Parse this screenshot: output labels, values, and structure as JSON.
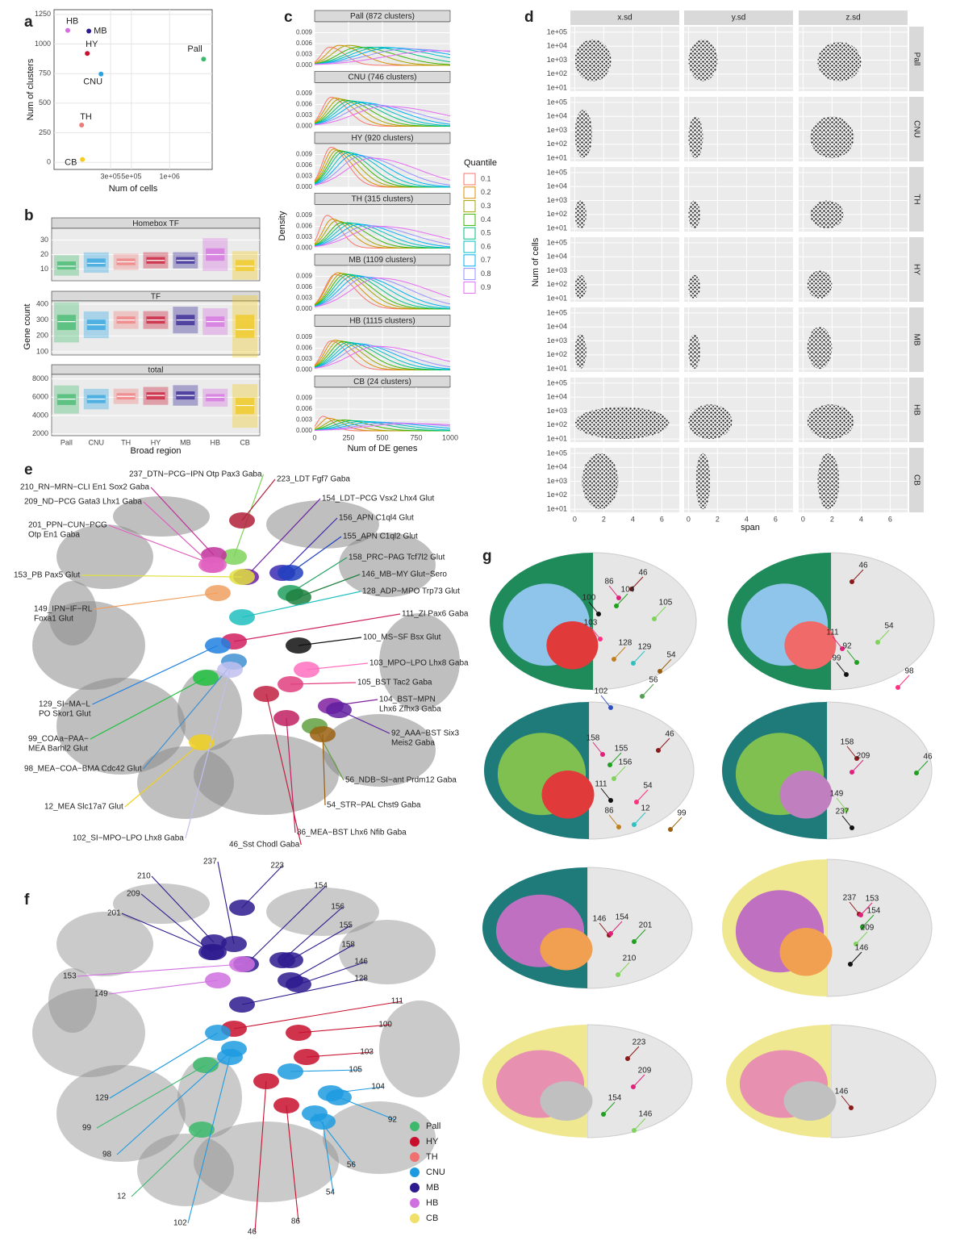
{
  "panel_labels": [
    "a",
    "b",
    "c",
    "d",
    "e",
    "f",
    "g"
  ],
  "chart_data": [
    {
      "type": "scatter",
      "xlabel": "Num of cells",
      "ylabel": "Num of clusters",
      "xscale": "sqrt",
      "xlim": [
        13000,
        1760000
      ],
      "ylim": [
        -60,
        1290
      ],
      "xticks": [
        {
          "value": 300000,
          "label": "3e+05"
        },
        {
          "value": 500000,
          "label": "5e+05"
        },
        {
          "value": 1000000,
          "label": "1e+06"
        }
      ],
      "yticks": [
        0,
        250,
        500,
        750,
        1000,
        1250
      ],
      "grid": true,
      "categories": [
        "HB",
        "MB",
        "HY",
        "Pall",
        "CNU",
        "TH",
        "CB"
      ],
      "x": [
        48000,
        145000,
        136000,
        1590000,
        225000,
        106000,
        110000
      ],
      "values": [
        1115,
        1109,
        920,
        872,
        746,
        315,
        24
      ],
      "colors": [
        "#d56ee0",
        "#2b1d8e",
        "#c8102e",
        "#3cb96b",
        "#2ba3e0",
        "#f07a7a",
        "#f5cc20"
      ]
    },
    {
      "type": "box",
      "xlabel": "Broad region",
      "ylabel": "Gene count",
      "categories": [
        "Pall",
        "CNU",
        "TH",
        "HY",
        "MB",
        "HB",
        "CB"
      ],
      "colors": [
        "#3cb96b",
        "#2ba3e0",
        "#f07a7a",
        "#c8102e",
        "#2b1d8e",
        "#d56ee0",
        "#f0c818"
      ],
      "facets": [
        {
          "title": "Homebox TF",
          "ylim": [
            2,
            38
          ],
          "yticks": [
            10,
            20,
            30
          ],
          "q1": [
            10,
            12,
            13,
            14,
            14,
            16,
            9
          ],
          "median": [
            12,
            14,
            15,
            16,
            16,
            20,
            12
          ],
          "q3": [
            15,
            17,
            17,
            18,
            18,
            24,
            16
          ]
        },
        {
          "title": "TF",
          "ylim": [
            80,
            420
          ],
          "yticks": [
            100,
            200,
            300,
            400
          ],
          "q1": [
            240,
            240,
            280,
            280,
            270,
            260,
            190
          ],
          "median": [
            290,
            270,
            300,
            300,
            300,
            290,
            240
          ],
          "q3": [
            330,
            300,
            320,
            320,
            330,
            320,
            330
          ]
        },
        {
          "title": "total",
          "ylim": [
            1800,
            8500
          ],
          "yticks": [
            2000,
            4000,
            6000,
            8000
          ],
          "q1": [
            5200,
            5400,
            5800,
            5800,
            5800,
            5600,
            4200
          ],
          "median": [
            5800,
            5800,
            6100,
            6200,
            6200,
            6000,
            5100
          ],
          "q3": [
            6300,
            6200,
            6400,
            6500,
            6600,
            6300,
            5900
          ]
        }
      ]
    },
    {
      "type": "density",
      "xlabel": "Num of DE genes",
      "ylabel": "Density",
      "xlim": [
        0,
        1000
      ],
      "xticks": [
        0,
        250,
        500,
        750,
        1000
      ],
      "ylim": [
        0,
        0.012
      ],
      "yticks": [
        {
          "value": 0,
          "label": "0.000"
        },
        {
          "value": 0.003,
          "label": "0.003"
        },
        {
          "value": 0.006,
          "label": "0.006"
        },
        {
          "value": 0.009,
          "label": "0.009"
        }
      ],
      "legend_title": "Quantile",
      "series_names": [
        "0.1",
        "0.2",
        "0.3",
        "0.4",
        "0.5",
        "0.6",
        "0.7",
        "0.8",
        "0.9"
      ],
      "colors": [
        "#f8766d",
        "#d89000",
        "#a3a500",
        "#39b600",
        "#00bf7d",
        "#00bfc4",
        "#00b0f6",
        "#9590ff",
        "#e76bf3"
      ],
      "facets": [
        {
          "title": "Pall (872 clusters)",
          "peak_x": [
            110,
            180,
            250,
            320,
            400,
            480,
            560,
            680,
            900
          ],
          "peak_y": [
            0.005,
            0.0055,
            0.0055,
            0.005,
            0.005,
            0.005,
            0.0048,
            0.0045,
            0.004
          ]
        },
        {
          "title": "CNU (746 clusters)",
          "peak_x": [
            120,
            150,
            185,
            220,
            260,
            300,
            350,
            410,
            520
          ],
          "peak_y": [
            0.008,
            0.0078,
            0.0075,
            0.0072,
            0.007,
            0.0068,
            0.0065,
            0.006,
            0.0055
          ]
        },
        {
          "title": "HY (920 clusters)",
          "peak_x": [
            120,
            140,
            165,
            190,
            215,
            250,
            290,
            340,
            420
          ],
          "peak_y": [
            0.011,
            0.0105,
            0.0102,
            0.01,
            0.0098,
            0.0095,
            0.009,
            0.0085,
            0.008
          ]
        },
        {
          "title": "TH (315 clusters)",
          "peak_x": [
            90,
            130,
            160,
            200,
            240,
            280,
            330,
            390,
            480
          ],
          "peak_y": [
            0.009,
            0.008,
            0.0075,
            0.007,
            0.007,
            0.0068,
            0.0065,
            0.0062,
            0.006
          ]
        },
        {
          "title": "MB (1109 clusters)",
          "peak_x": [
            150,
            170,
            200,
            225,
            255,
            290,
            330,
            385,
            470
          ],
          "peak_y": [
            0.0095,
            0.01,
            0.0098,
            0.0096,
            0.0095,
            0.0093,
            0.009,
            0.0088,
            0.0085
          ]
        },
        {
          "title": "HB (1115 clusters)",
          "peak_x": [
            120,
            150,
            180,
            210,
            245,
            280,
            320,
            370,
            460
          ],
          "peak_y": [
            0.008,
            0.0082,
            0.008,
            0.0078,
            0.0076,
            0.0074,
            0.0072,
            0.0068,
            0.0065
          ]
        },
        {
          "title": "CB (24 clusters)",
          "peak_x": [
            60,
            100,
            150,
            210,
            280,
            350,
            440,
            550,
            680
          ],
          "peak_y": [
            0.004,
            0.0035,
            0.003,
            0.003,
            0.0028,
            0.0026,
            0.0024,
            0.0022,
            0.002
          ]
        }
      ]
    },
    {
      "type": "scatter-facet",
      "xlabel": "span",
      "ylabel": "Num of cells",
      "ylog": true,
      "xlim": [
        -0.3,
        7.2
      ],
      "xticks": [
        0,
        2,
        4,
        6
      ],
      "ylim": [
        6,
        250000
      ],
      "yticks": [
        {
          "value": 10,
          "label": "1e+01"
        },
        {
          "value": 100,
          "label": "1e+02"
        },
        {
          "value": 1000,
          "label": "1e+03"
        },
        {
          "value": 10000,
          "label": "1e+04"
        },
        {
          "value": 100000,
          "label": "1e+05"
        }
      ],
      "columns": [
        "x.sd",
        "y.sd",
        "z.sd"
      ],
      "rows": [
        "Pall",
        "CNU",
        "TH",
        "HY",
        "MB",
        "HB",
        "CB"
      ],
      "cells": [
        [
          {
            "x": [
              0,
              2.5
            ],
            "y": [
              30,
              30000
            ]
          },
          {
            "x": [
              0,
              2
            ],
            "y": [
              30,
              30000
            ]
          },
          {
            "x": [
              1,
              4
            ],
            "y": [
              30,
              20000
            ]
          }
        ],
        [
          {
            "x": [
              0,
              1.2
            ],
            "y": [
              10,
              30000
            ]
          },
          {
            "x": [
              0,
              1
            ],
            "y": [
              10,
              10000
            ]
          },
          {
            "x": [
              0.5,
              3.5
            ],
            "y": [
              10,
              10000
            ]
          }
        ],
        [
          {
            "x": [
              0,
              0.8
            ],
            "y": [
              10,
              1000
            ]
          },
          {
            "x": [
              0,
              0.8
            ],
            "y": [
              10,
              1000
            ]
          },
          {
            "x": [
              0.5,
              2.8
            ],
            "y": [
              10,
              1000
            ]
          }
        ],
        [
          {
            "x": [
              0,
              0.8
            ],
            "y": [
              10,
              500
            ]
          },
          {
            "x": [
              0,
              0.8
            ],
            "y": [
              10,
              500
            ]
          },
          {
            "x": [
              0.3,
              2
            ],
            "y": [
              10,
              1000
            ]
          }
        ],
        [
          {
            "x": [
              0,
              0.8
            ],
            "y": [
              10,
              3000
            ]
          },
          {
            "x": [
              0,
              0.8
            ],
            "y": [
              10,
              3000
            ]
          },
          {
            "x": [
              0.3,
              2
            ],
            "y": [
              10,
              10000
            ]
          }
        ],
        [
          {
            "x": [
              0,
              6.5
            ],
            "y": [
              10,
              2000
            ]
          },
          {
            "x": [
              0,
              3
            ],
            "y": [
              10,
              3000
            ]
          },
          {
            "x": [
              0.3,
              3.5
            ],
            "y": [
              10,
              3000
            ]
          }
        ],
        [
          {
            "x": [
              0.5,
              3
            ],
            "y": [
              10,
              100000
            ]
          },
          {
            "x": [
              0.5,
              1.5
            ],
            "y": [
              10,
              100000
            ]
          },
          {
            "x": [
              1,
              2.5
            ],
            "y": [
              10,
              100000
            ]
          }
        ]
      ]
    }
  ],
  "panel_e": {
    "labels": [
      [
        "237_DTN−PCG−IPN Otp Pax3 Gaba"
      ],
      [
        "223_LDT Fgf7 Gaba"
      ],
      [
        "210_RN−MRN−CLI En1 Sox2 Gaba"
      ],
      [
        "154_LDT−PCG Vsx2 Lhx4 Glut"
      ],
      [
        "209_ND−PCG Gata3 Lhx1 Gaba"
      ],
      [
        "156_APN C1ql4 Glut"
      ],
      [
        "201_PPN−CUN−PCG",
        "Otp En1 Gaba"
      ],
      [
        "155_APN C1ql2 Glut"
      ],
      [
        "158_PRC−PAG Tcf7l2 Glut"
      ],
      [
        "153_PB Pax5 Glut"
      ],
      [
        "146_MB−MY Glut−Sero"
      ],
      [
        "128_ADP−MPO Trp73 Glut"
      ],
      [
        "149_IPN−IF−RL",
        "Foxa1 Glut"
      ],
      [
        "111_ZI Pax6 Gaba"
      ],
      [
        "100_MS−SF Bsx Glut"
      ],
      [
        "103_MPO−LPO Lhx8 Gaba"
      ],
      [
        "105_BST Tac2 Gaba"
      ],
      [
        "104_BST−MPN",
        "Lhx6 Zfhx3 Gaba"
      ],
      [
        "129_SI−MA−L",
        "PO Skor1 Glut"
      ],
      [
        "92_AAA−BST Six3",
        "Meis2 Gaba"
      ],
      [
        "99_COAa−PAA−",
        "MEA Barhl2 Glut"
      ],
      [
        "98_MEA−COA−BMA Cdc42 Glut"
      ],
      [
        "56_NDB−SI−ant Prdm12 Gaba"
      ],
      [
        "12_MEA Slc17a7 Glut"
      ],
      [
        "54_STR−PAL Chst9 Gaba"
      ],
      [
        "102_SI−MPO−LPO Lhx8 Gaba"
      ],
      [
        "86_MEA−BST Lhx6 Nfib Gaba"
      ],
      [
        "46_Sst Chodl Gaba"
      ]
    ]
  },
  "panel_f": {
    "labels": [
      "237",
      "223",
      "210",
      "154",
      "209",
      "156",
      "201",
      "155",
      "158",
      "153",
      "146",
      "128",
      "149",
      "111",
      "100",
      "103",
      "105",
      "104",
      "129",
      "92",
      "99",
      "98",
      "56",
      "12",
      "54",
      "102",
      "86",
      "46"
    ],
    "legend": [
      {
        "name": "Pall",
        "color": "#3cb96b"
      },
      {
        "name": "HY",
        "color": "#c8102e"
      },
      {
        "name": "TH",
        "color": "#f07070"
      },
      {
        "name": "CNU",
        "color": "#1e9be0"
      },
      {
        "name": "MB",
        "color": "#2e1a8e"
      },
      {
        "name": "HB",
        "color": "#d070e0"
      },
      {
        "name": "CB",
        "color": "#f0e06a"
      }
    ]
  },
  "panel_g": {
    "sections": [
      [
        "46",
        "86",
        "104",
        "105",
        "100",
        "103",
        "128",
        "129",
        "54",
        "102",
        "56"
      ],
      [
        "46",
        "111",
        "92",
        "54",
        "99",
        "98"
      ],
      [
        "46",
        "158",
        "155",
        "156",
        "111",
        "54",
        "86",
        "12",
        "99"
      ],
      [
        "158",
        "209",
        "46",
        "149",
        "237"
      ],
      [
        "146",
        "154",
        "201",
        "210"
      ],
      [
        "237",
        "153",
        "154",
        "209",
        "146"
      ],
      [
        "223",
        "209",
        "154",
        "146"
      ],
      [
        "146"
      ]
    ]
  }
}
